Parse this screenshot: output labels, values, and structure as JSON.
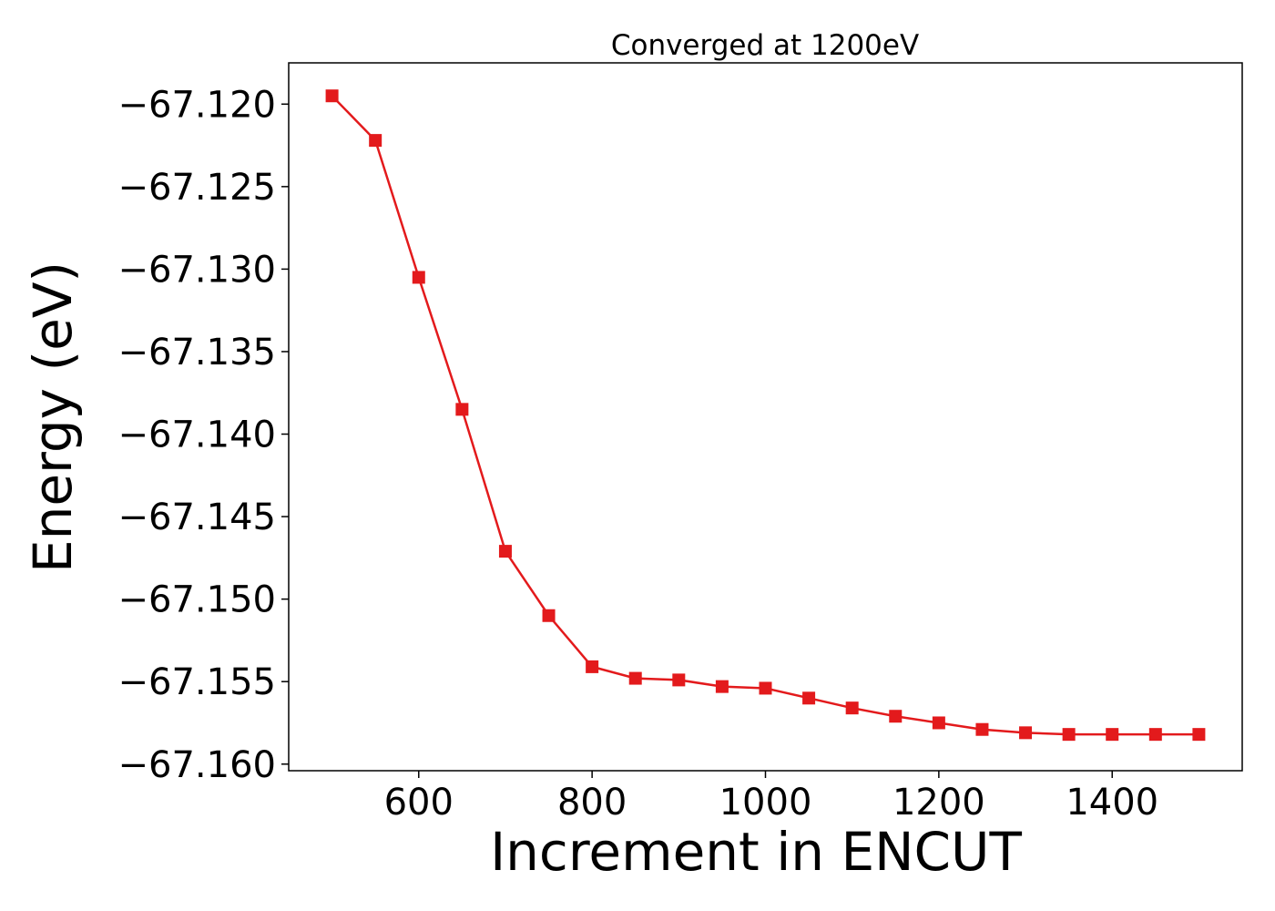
{
  "chart_data": {
    "type": "line",
    "title": "Converged at 1200eV",
    "xlabel": "Increment in ENCUT",
    "ylabel": "Energy (eV)",
    "xlim": [
      450,
      1550
    ],
    "ylim": [
      -67.1604,
      -67.1175
    ],
    "xticks": [
      {
        "value": 600,
        "label": "600"
      },
      {
        "value": 800,
        "label": "800"
      },
      {
        "value": 1000,
        "label": "1000"
      },
      {
        "value": 1200,
        "label": "1200"
      },
      {
        "value": 1400,
        "label": "1400"
      }
    ],
    "yticks": [
      {
        "value": -67.12,
        "label": "−67.120"
      },
      {
        "value": -67.125,
        "label": "−67.125"
      },
      {
        "value": -67.13,
        "label": "−67.130"
      },
      {
        "value": -67.135,
        "label": "−67.135"
      },
      {
        "value": -67.14,
        "label": "−67.140"
      },
      {
        "value": -67.145,
        "label": "−67.145"
      },
      {
        "value": -67.15,
        "label": "−67.150"
      },
      {
        "value": -67.155,
        "label": "−67.155"
      },
      {
        "value": -67.16,
        "label": "−67.160"
      }
    ],
    "grid": false,
    "series": [
      {
        "color": "#e31a1c",
        "marker": "square",
        "x": [
          500,
          550,
          600,
          650,
          700,
          750,
          800,
          850,
          900,
          950,
          1000,
          1050,
          1100,
          1150,
          1200,
          1250,
          1300,
          1350,
          1400,
          1450,
          1500
        ],
        "values": [
          -67.1195,
          -67.1222,
          -67.1305,
          -67.1385,
          -67.1471,
          -67.151,
          -67.1541,
          -67.1548,
          -67.1549,
          -67.1553,
          -67.1554,
          -67.156,
          -67.1566,
          -67.1571,
          -67.1575,
          -67.1579,
          -67.1581,
          -67.1582,
          -67.1582,
          -67.1582,
          -67.1582
        ]
      }
    ]
  }
}
